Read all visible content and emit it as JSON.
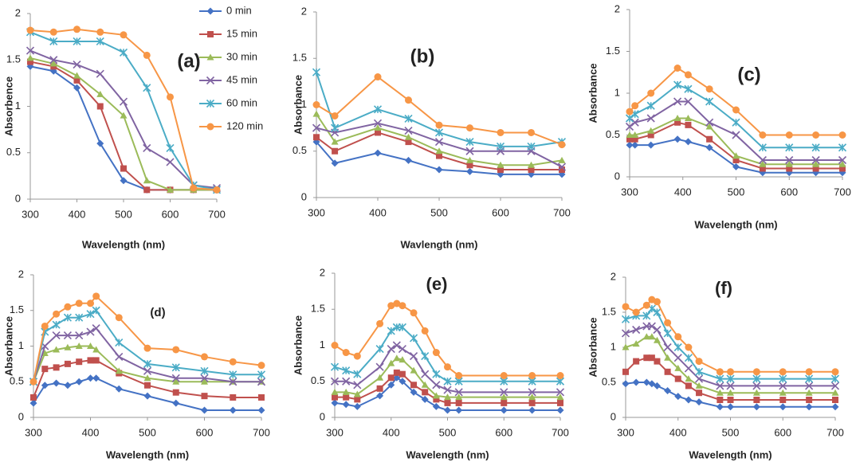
{
  "chart_data": [
    {
      "type": "line",
      "title": "(a)",
      "xlabel": "Wavelength (nm)",
      "ylabel": "Absorbence",
      "legend": "upper right",
      "x": [
        300,
        350,
        400,
        450,
        500,
        550,
        600,
        650,
        700
      ],
      "xlim": [
        300,
        700
      ],
      "ylim": [
        0,
        2
      ],
      "xticks": [
        300,
        400,
        500,
        600,
        700
      ],
      "yticks": [
        0,
        0.5,
        1,
        1.5,
        2
      ],
      "series": [
        {
          "name": "0 min",
          "color": "#4472c4",
          "marker": "diamond",
          "values": [
            1.43,
            1.38,
            1.2,
            0.6,
            0.2,
            0.1,
            0.1,
            0.1,
            0.1
          ]
        },
        {
          "name": "15 min",
          "color": "#c0504d",
          "marker": "square",
          "values": [
            1.48,
            1.43,
            1.28,
            1.0,
            0.33,
            0.1,
            0.1,
            0.1,
            0.1
          ]
        },
        {
          "name": "30 min",
          "color": "#9bbb59",
          "marker": "triangle",
          "values": [
            1.52,
            1.46,
            1.33,
            1.13,
            0.9,
            0.2,
            0.1,
            0.1,
            0.1
          ]
        },
        {
          "name": "45 min",
          "color": "#8064a2",
          "marker": "x",
          "values": [
            1.6,
            1.5,
            1.45,
            1.35,
            1.05,
            0.55,
            0.4,
            0.15,
            0.12
          ]
        },
        {
          "name": "60 min",
          "color": "#4bacc6",
          "marker": "star",
          "values": [
            1.8,
            1.7,
            1.7,
            1.7,
            1.58,
            1.2,
            0.55,
            0.15,
            0.1
          ]
        },
        {
          "name": "120 min",
          "color": "#f79646",
          "marker": "circle",
          "values": [
            1.82,
            1.8,
            1.83,
            1.8,
            1.77,
            1.55,
            1.1,
            0.12,
            0.1
          ]
        }
      ]
    },
    {
      "type": "line",
      "title": "(b)",
      "xlabel": "Wavlength (nm)",
      "ylabel": "Absorbance",
      "x": [
        300,
        330,
        400,
        450,
        500,
        550,
        600,
        650,
        700
      ],
      "xlim": [
        300,
        700
      ],
      "ylim": [
        0,
        2
      ],
      "xticks": [
        300,
        400,
        500,
        600,
        700
      ],
      "yticks": [
        0,
        0.5,
        1,
        1.5,
        2
      ],
      "series": [
        {
          "color": "#4472c4",
          "marker": "diamond",
          "values": [
            0.6,
            0.37,
            0.48,
            0.4,
            0.3,
            0.28,
            0.25,
            0.25,
            0.25
          ]
        },
        {
          "color": "#c0504d",
          "marker": "square",
          "values": [
            0.65,
            0.5,
            0.7,
            0.6,
            0.45,
            0.35,
            0.3,
            0.3,
            0.3
          ]
        },
        {
          "color": "#9bbb59",
          "marker": "triangle",
          "values": [
            0.9,
            0.6,
            0.75,
            0.65,
            0.5,
            0.4,
            0.35,
            0.35,
            0.4
          ]
        },
        {
          "color": "#8064a2",
          "marker": "x",
          "values": [
            0.75,
            0.7,
            0.8,
            0.72,
            0.6,
            0.5,
            0.5,
            0.5,
            0.33
          ]
        },
        {
          "color": "#4bacc6",
          "marker": "star",
          "values": [
            1.35,
            0.75,
            0.95,
            0.85,
            0.7,
            0.6,
            0.55,
            0.55,
            0.6
          ]
        },
        {
          "color": "#f79646",
          "marker": "circle",
          "values": [
            1.0,
            0.88,
            1.3,
            1.05,
            0.78,
            0.75,
            0.7,
            0.7,
            0.57
          ]
        }
      ]
    },
    {
      "type": "line",
      "title": "(c)",
      "xlabel": "Wavelength (nm)",
      "ylabel": "Absorbance",
      "x": [
        300,
        310,
        340,
        390,
        410,
        450,
        500,
        550,
        600,
        650,
        700
      ],
      "xlim": [
        300,
        700
      ],
      "ylim": [
        0,
        2
      ],
      "xticks": [
        300,
        400,
        500,
        600,
        700
      ],
      "yticks": [
        0,
        0.5,
        1,
        1.5,
        2
      ],
      "series": [
        {
          "color": "#4472c4",
          "marker": "diamond",
          "values": [
            0.38,
            0.38,
            0.38,
            0.45,
            0.42,
            0.35,
            0.12,
            0.05,
            0.05,
            0.05,
            0.05
          ]
        },
        {
          "color": "#c0504d",
          "marker": "square",
          "values": [
            0.45,
            0.45,
            0.5,
            0.65,
            0.62,
            0.45,
            0.2,
            0.1,
            0.1,
            0.1,
            0.1
          ]
        },
        {
          "color": "#9bbb59",
          "marker": "triangle",
          "values": [
            0.5,
            0.5,
            0.55,
            0.7,
            0.7,
            0.6,
            0.25,
            0.15,
            0.15,
            0.15,
            0.15
          ]
        },
        {
          "color": "#8064a2",
          "marker": "x",
          "values": [
            0.6,
            0.65,
            0.7,
            0.9,
            0.9,
            0.65,
            0.5,
            0.2,
            0.2,
            0.2,
            0.2
          ]
        },
        {
          "color": "#4bacc6",
          "marker": "star",
          "values": [
            0.7,
            0.75,
            0.85,
            1.1,
            1.05,
            0.9,
            0.65,
            0.35,
            0.35,
            0.35,
            0.35
          ]
        },
        {
          "color": "#f79646",
          "marker": "circle",
          "values": [
            0.78,
            0.85,
            1.0,
            1.3,
            1.22,
            1.05,
            0.8,
            0.5,
            0.5,
            0.5,
            0.5
          ]
        }
      ]
    },
    {
      "type": "line",
      "title": "(d)",
      "xlabel": "Wavelength (nm)",
      "ylabel": "Absorbance",
      "x": [
        300,
        320,
        340,
        360,
        380,
        400,
        410,
        450,
        500,
        550,
        600,
        650,
        700
      ],
      "xlim": [
        300,
        700
      ],
      "ylim": [
        0,
        2
      ],
      "xticks": [
        300,
        400,
        500,
        600,
        700
      ],
      "yticks": [
        0,
        0.5,
        1,
        1.5,
        2
      ],
      "series": [
        {
          "color": "#4472c4",
          "marker": "diamond",
          "values": [
            0.2,
            0.45,
            0.48,
            0.45,
            0.5,
            0.55,
            0.55,
            0.4,
            0.3,
            0.2,
            0.1,
            0.1,
            0.1
          ]
        },
        {
          "color": "#c0504d",
          "marker": "square",
          "values": [
            0.28,
            0.68,
            0.7,
            0.75,
            0.78,
            0.8,
            0.8,
            0.62,
            0.45,
            0.35,
            0.3,
            0.28,
            0.28
          ]
        },
        {
          "color": "#9bbb59",
          "marker": "triangle",
          "values": [
            0.5,
            0.9,
            0.95,
            0.98,
            1.0,
            1.0,
            0.95,
            0.65,
            0.55,
            0.5,
            0.5,
            0.5,
            0.5
          ]
        },
        {
          "color": "#8064a2",
          "marker": "x",
          "values": [
            0.5,
            1.0,
            1.15,
            1.15,
            1.15,
            1.2,
            1.25,
            0.85,
            0.65,
            0.55,
            0.55,
            0.5,
            0.5
          ]
        },
        {
          "color": "#4bacc6",
          "marker": "star",
          "values": [
            0.5,
            1.2,
            1.3,
            1.4,
            1.4,
            1.45,
            1.5,
            1.05,
            0.75,
            0.7,
            0.65,
            0.6,
            0.6
          ]
        },
        {
          "color": "#f79646",
          "marker": "circle",
          "values": [
            0.5,
            1.28,
            1.45,
            1.55,
            1.6,
            1.6,
            1.7,
            1.4,
            0.97,
            0.95,
            0.85,
            0.78,
            0.73
          ]
        }
      ]
    },
    {
      "type": "line",
      "title": "(e)",
      "xlabel": "Wavelength (nm)",
      "ylabel": "Absorbance",
      "x": [
        300,
        320,
        340,
        380,
        400,
        410,
        420,
        440,
        460,
        480,
        500,
        520,
        600,
        650,
        700
      ],
      "xlim": [
        300,
        700
      ],
      "ylim": [
        0,
        2
      ],
      "xticks": [
        300,
        400,
        500,
        600,
        700
      ],
      "yticks": [
        0,
        0.5,
        1,
        1.5,
        2
      ],
      "series": [
        {
          "color": "#4472c4",
          "marker": "diamond",
          "values": [
            0.2,
            0.18,
            0.15,
            0.3,
            0.45,
            0.55,
            0.5,
            0.35,
            0.25,
            0.15,
            0.1,
            0.1,
            0.1,
            0.1,
            0.1
          ]
        },
        {
          "color": "#c0504d",
          "marker": "square",
          "values": [
            0.28,
            0.28,
            0.25,
            0.4,
            0.55,
            0.62,
            0.6,
            0.45,
            0.35,
            0.25,
            0.2,
            0.2,
            0.2,
            0.2,
            0.2
          ]
        },
        {
          "color": "#9bbb59",
          "marker": "triangle",
          "values": [
            0.35,
            0.35,
            0.32,
            0.55,
            0.75,
            0.82,
            0.8,
            0.65,
            0.45,
            0.3,
            0.28,
            0.28,
            0.28,
            0.28,
            0.28
          ]
        },
        {
          "color": "#8064a2",
          "marker": "x",
          "values": [
            0.5,
            0.5,
            0.45,
            0.7,
            0.95,
            1.0,
            0.95,
            0.85,
            0.6,
            0.45,
            0.38,
            0.35,
            0.35,
            0.35,
            0.35
          ]
        },
        {
          "color": "#4bacc6",
          "marker": "star",
          "values": [
            0.7,
            0.65,
            0.6,
            0.95,
            1.2,
            1.25,
            1.25,
            1.1,
            0.85,
            0.6,
            0.5,
            0.5,
            0.5,
            0.5,
            0.5
          ]
        },
        {
          "color": "#f79646",
          "marker": "circle",
          "values": [
            1.0,
            0.9,
            0.85,
            1.3,
            1.55,
            1.58,
            1.55,
            1.45,
            1.2,
            0.9,
            0.7,
            0.58,
            0.58,
            0.58,
            0.58
          ]
        }
      ]
    },
    {
      "type": "line",
      "title": "(f)",
      "xlabel": "Wavelength (nm)",
      "ylabel": "Absorbance",
      "x": [
        300,
        320,
        340,
        350,
        360,
        380,
        400,
        420,
        440,
        480,
        500,
        550,
        600,
        650,
        700
      ],
      "xlim": [
        300,
        700
      ],
      "ylim": [
        0,
        2
      ],
      "xticks": [
        300,
        400,
        500,
        600,
        700
      ],
      "yticks": [
        0,
        0.5,
        1,
        1.5,
        2
      ],
      "series": [
        {
          "color": "#4472c4",
          "marker": "diamond",
          "values": [
            0.48,
            0.5,
            0.5,
            0.48,
            0.45,
            0.38,
            0.3,
            0.25,
            0.22,
            0.15,
            0.15,
            0.15,
            0.15,
            0.15,
            0.15
          ]
        },
        {
          "color": "#c0504d",
          "marker": "square",
          "values": [
            0.65,
            0.8,
            0.85,
            0.85,
            0.8,
            0.65,
            0.55,
            0.45,
            0.35,
            0.25,
            0.25,
            0.25,
            0.25,
            0.25,
            0.25
          ]
        },
        {
          "color": "#9bbb59",
          "marker": "triangle",
          "values": [
            1.0,
            1.05,
            1.15,
            1.15,
            1.1,
            0.85,
            0.7,
            0.55,
            0.45,
            0.35,
            0.35,
            0.35,
            0.35,
            0.35,
            0.35
          ]
        },
        {
          "color": "#8064a2",
          "marker": "x",
          "values": [
            1.2,
            1.25,
            1.3,
            1.3,
            1.25,
            1.0,
            0.85,
            0.7,
            0.55,
            0.45,
            0.45,
            0.45,
            0.45,
            0.45,
            0.45
          ]
        },
        {
          "color": "#4bacc6",
          "marker": "star",
          "values": [
            1.4,
            1.45,
            1.45,
            1.55,
            1.5,
            1.2,
            1.0,
            0.85,
            0.65,
            0.55,
            0.55,
            0.55,
            0.55,
            0.55,
            0.55
          ]
        },
        {
          "color": "#f79646",
          "marker": "circle",
          "values": [
            1.58,
            1.5,
            1.6,
            1.68,
            1.65,
            1.35,
            1.15,
            1.0,
            0.8,
            0.65,
            0.65,
            0.65,
            0.65,
            0.65,
            0.65
          ]
        }
      ]
    }
  ]
}
